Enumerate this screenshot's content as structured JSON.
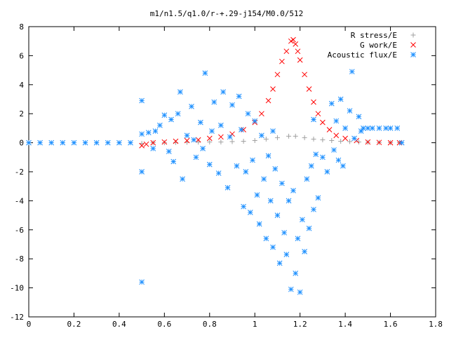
{
  "chart_data": {
    "type": "scatter",
    "title": "m1/n1.5/q1.0/r-+.29-j154/M0.0/512",
    "xlabel": "",
    "ylabel": "",
    "xlim": [
      0,
      1.8
    ],
    "ylim": [
      -12,
      8
    ],
    "grid": false,
    "legend_position": "top-right",
    "x_ticks": [
      "0",
      "0.2",
      "0.4",
      "0.6",
      "0.8",
      "1",
      "1.2",
      "1.4",
      "1.6",
      "1.8"
    ],
    "y_ticks": [
      "8",
      "6",
      "4",
      "2",
      "0",
      "-2",
      "-4",
      "-6",
      "-8",
      "-10",
      "-12"
    ],
    "series": [
      {
        "name": "R stress/E",
        "marker": "plus",
        "color": "#a0a0a0",
        "points": [
          [
            0.5,
            -0.05
          ],
          [
            0.55,
            0.0
          ],
          [
            0.6,
            0.0
          ],
          [
            0.65,
            0.02
          ],
          [
            0.7,
            0.03
          ],
          [
            0.75,
            0.04
          ],
          [
            0.8,
            0.05
          ],
          [
            0.85,
            0.05
          ],
          [
            0.9,
            0.08
          ],
          [
            0.95,
            0.1
          ],
          [
            1.0,
            0.15
          ],
          [
            1.05,
            0.25
          ],
          [
            1.1,
            0.35
          ],
          [
            1.15,
            0.45
          ],
          [
            1.18,
            0.45
          ],
          [
            1.22,
            0.35
          ],
          [
            1.26,
            0.25
          ],
          [
            1.3,
            0.2
          ],
          [
            1.34,
            0.15
          ],
          [
            1.38,
            0.1
          ],
          [
            1.42,
            0.08
          ],
          [
            1.46,
            0.05
          ],
          [
            1.5,
            0.03
          ],
          [
            1.55,
            0.02
          ],
          [
            1.6,
            0.01
          ],
          [
            1.64,
            0.0
          ]
        ]
      },
      {
        "name": "G work/E",
        "marker": "cross",
        "color": "#ff0000",
        "points": [
          [
            0.5,
            -0.2
          ],
          [
            0.52,
            -0.1
          ],
          [
            0.55,
            0.0
          ],
          [
            0.6,
            0.05
          ],
          [
            0.65,
            0.1
          ],
          [
            0.7,
            0.15
          ],
          [
            0.75,
            0.2
          ],
          [
            0.8,
            0.3
          ],
          [
            0.85,
            0.4
          ],
          [
            0.9,
            0.6
          ],
          [
            0.95,
            0.9
          ],
          [
            1.0,
            1.4
          ],
          [
            1.03,
            2.0
          ],
          [
            1.06,
            2.9
          ],
          [
            1.08,
            3.7
          ],
          [
            1.1,
            4.7
          ],
          [
            1.12,
            5.6
          ],
          [
            1.14,
            6.3
          ],
          [
            1.16,
            7.0
          ],
          [
            1.17,
            7.1
          ],
          [
            1.18,
            6.8
          ],
          [
            1.19,
            6.3
          ],
          [
            1.2,
            5.7
          ],
          [
            1.22,
            4.7
          ],
          [
            1.24,
            3.7
          ],
          [
            1.26,
            2.8
          ],
          [
            1.28,
            2.0
          ],
          [
            1.3,
            1.4
          ],
          [
            1.33,
            0.9
          ],
          [
            1.36,
            0.5
          ],
          [
            1.4,
            0.3
          ],
          [
            1.45,
            0.15
          ],
          [
            1.5,
            0.05
          ],
          [
            1.55,
            0.02
          ],
          [
            1.6,
            0.0
          ],
          [
            1.64,
            0.0
          ]
        ]
      },
      {
        "name": "Acoustic flux/E",
        "marker": "star",
        "color": "#1e90ff",
        "points": [
          [
            0.0,
            0.0
          ],
          [
            0.05,
            0.0
          ],
          [
            0.1,
            0.0
          ],
          [
            0.15,
            0.0
          ],
          [
            0.2,
            0.0
          ],
          [
            0.25,
            0.0
          ],
          [
            0.3,
            0.0
          ],
          [
            0.35,
            0.0
          ],
          [
            0.4,
            0.0
          ],
          [
            0.45,
            0.0
          ],
          [
            0.5,
            0.6
          ],
          [
            0.53,
            0.7
          ],
          [
            0.56,
            0.8
          ],
          [
            0.5,
            2.9
          ],
          [
            0.5,
            -2.0
          ],
          [
            0.5,
            -9.6
          ],
          [
            0.55,
            -0.4
          ],
          [
            0.58,
            1.2
          ],
          [
            0.6,
            1.9
          ],
          [
            0.62,
            -0.6
          ],
          [
            0.63,
            1.6
          ],
          [
            0.64,
            -1.3
          ],
          [
            0.66,
            2.0
          ],
          [
            0.67,
            3.5
          ],
          [
            0.68,
            -2.5
          ],
          [
            0.7,
            0.5
          ],
          [
            0.72,
            2.5
          ],
          [
            0.74,
            -1.0
          ],
          [
            0.76,
            1.4
          ],
          [
            0.78,
            4.8
          ],
          [
            0.8,
            -1.5
          ],
          [
            0.81,
            0.8
          ],
          [
            0.82,
            2.8
          ],
          [
            0.84,
            -2.1
          ],
          [
            0.85,
            1.2
          ],
          [
            0.86,
            3.5
          ],
          [
            0.88,
            -3.1
          ],
          [
            0.89,
            0.4
          ],
          [
            0.9,
            2.6
          ],
          [
            0.92,
            -1.6
          ],
          [
            0.93,
            3.2
          ],
          [
            0.94,
            0.9
          ],
          [
            0.95,
            -4.4
          ],
          [
            0.96,
            -2.0
          ],
          [
            0.97,
            2.0
          ],
          [
            0.98,
            -4.8
          ],
          [
            0.99,
            -1.2
          ],
          [
            1.0,
            1.5
          ],
          [
            1.01,
            -3.6
          ],
          [
            1.02,
            -5.6
          ],
          [
            1.03,
            0.5
          ],
          [
            1.04,
            -2.5
          ],
          [
            1.05,
            -6.6
          ],
          [
            1.06,
            -0.9
          ],
          [
            1.07,
            -4.0
          ],
          [
            1.08,
            -7.2
          ],
          [
            1.09,
            -1.8
          ],
          [
            1.1,
            -5.0
          ],
          [
            1.11,
            -8.3
          ],
          [
            1.12,
            -2.8
          ],
          [
            1.13,
            -6.2
          ],
          [
            1.14,
            -7.7
          ],
          [
            1.15,
            -4.0
          ],
          [
            1.16,
            -10.1
          ],
          [
            1.17,
            -3.3
          ],
          [
            1.18,
            -9.0
          ],
          [
            1.19,
            -6.6
          ],
          [
            1.2,
            -10.3
          ],
          [
            1.21,
            -5.3
          ],
          [
            1.22,
            -7.5
          ],
          [
            1.23,
            -2.5
          ],
          [
            1.24,
            -5.9
          ],
          [
            1.25,
            -1.6
          ],
          [
            1.26,
            -4.6
          ],
          [
            1.27,
            -0.8
          ],
          [
            1.28,
            -3.8
          ],
          [
            1.3,
            -1.0
          ],
          [
            1.32,
            -2.0
          ],
          [
            1.34,
            2.7
          ],
          [
            1.35,
            -0.5
          ],
          [
            1.36,
            1.5
          ],
          [
            1.37,
            -1.2
          ],
          [
            1.38,
            3.0
          ],
          [
            1.39,
            -1.6
          ],
          [
            1.4,
            1.0
          ],
          [
            1.42,
            2.2
          ],
          [
            1.43,
            4.9
          ],
          [
            1.44,
            0.3
          ],
          [
            1.46,
            1.8
          ],
          [
            1.47,
            0.8
          ],
          [
            1.48,
            1.0
          ],
          [
            1.5,
            1.0
          ],
          [
            1.52,
            1.0
          ],
          [
            1.55,
            1.0
          ],
          [
            1.58,
            1.0
          ],
          [
            1.6,
            1.0
          ],
          [
            1.63,
            1.0
          ],
          [
            1.65,
            0.0
          ],
          [
            0.77,
            -0.4
          ],
          [
            0.73,
            0.2
          ],
          [
            1.08,
            0.8
          ],
          [
            1.26,
            1.6
          ]
        ]
      }
    ]
  }
}
